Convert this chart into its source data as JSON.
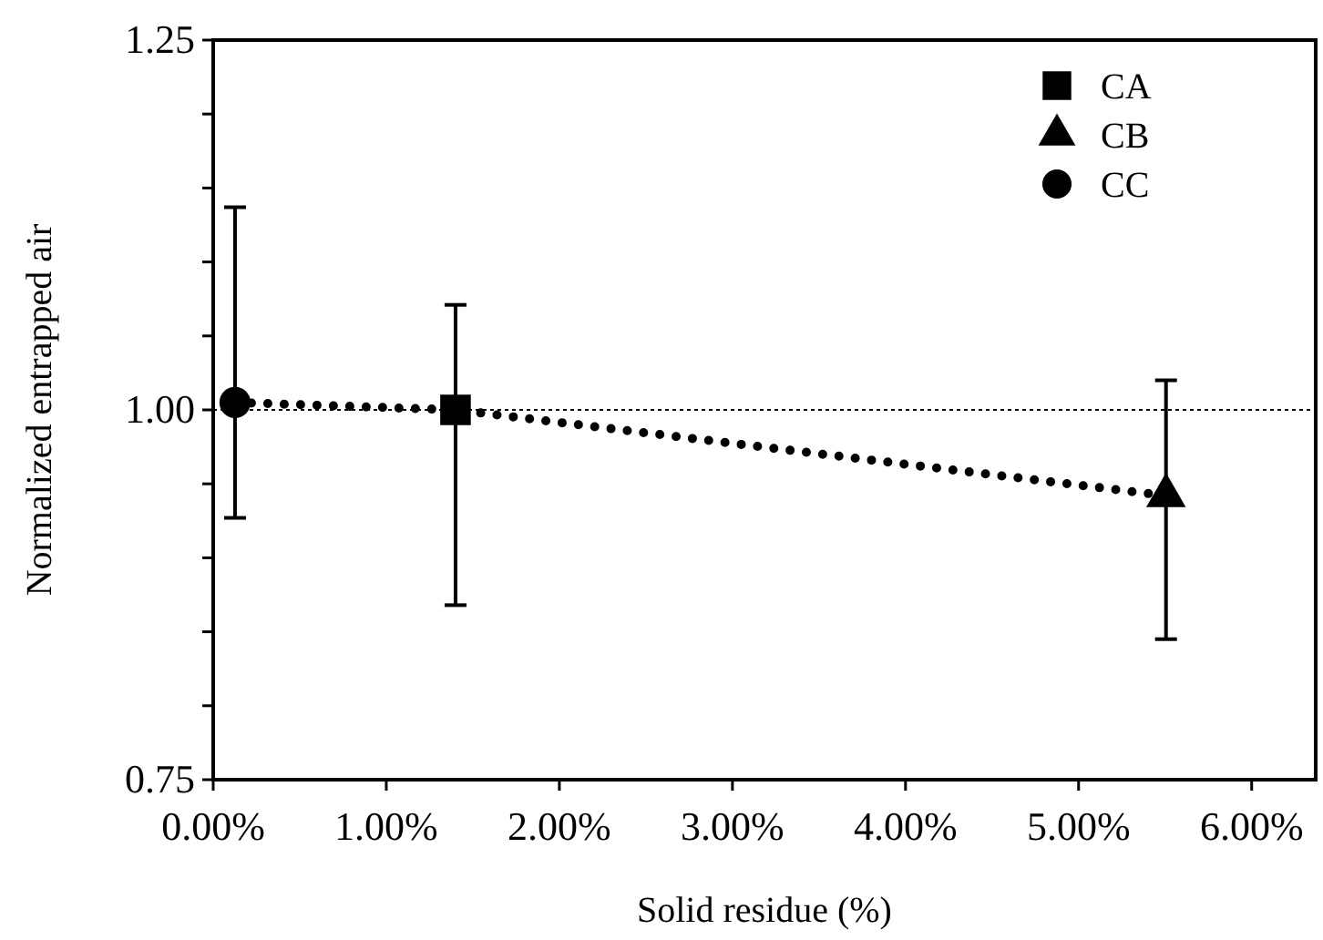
{
  "chart_data": {
    "type": "scatter",
    "xlabel": "Solid residue (%)",
    "ylabel": "Normalized entrapped air",
    "xlim": [
      0,
      6.37
    ],
    "xticks": [
      {
        "value": 0,
        "label": "0.00%"
      },
      {
        "value": 1,
        "label": "1.00%"
      },
      {
        "value": 2,
        "label": "2.00%"
      },
      {
        "value": 3,
        "label": "3.00%"
      },
      {
        "value": 4,
        "label": "4.00%"
      },
      {
        "value": 5,
        "label": "5.00%"
      },
      {
        "value": 6,
        "label": "6.00%"
      }
    ],
    "ylim": [
      0.75,
      1.25
    ],
    "yticks": [
      {
        "value": 0.75,
        "label": "0.75"
      },
      {
        "value": 0.8,
        "label": null
      },
      {
        "value": 0.85,
        "label": null
      },
      {
        "value": 0.9,
        "label": null
      },
      {
        "value": 0.95,
        "label": null
      },
      {
        "value": 1,
        "label": "1.00"
      },
      {
        "value": 1.05,
        "label": null
      },
      {
        "value": 1.1,
        "label": null
      },
      {
        "value": 1.15,
        "label": null
      },
      {
        "value": 1.2,
        "label": null
      },
      {
        "value": 1.25,
        "label": "1.25"
      }
    ],
    "grid": false,
    "legend": "top right",
    "series": [
      {
        "type": "line",
        "color": "#000000",
        "x": [
          0.126,
          1.4,
          5.505
        ],
        "values": [
          1.005,
          1.0,
          0.942
        ],
        "line_style": "dotted",
        "marker": "none"
      },
      {
        "name": "CA",
        "color": "#000000",
        "x": [
          1.4
        ],
        "values": [
          1.0
        ],
        "errors": [
          [
            0.868,
            1.071
          ]
        ],
        "marker": "square"
      },
      {
        "name": "CB",
        "color": "#000000",
        "x": [
          5.505
        ],
        "values": [
          0.942
        ],
        "errors": [
          [
            0.845,
            1.02
          ]
        ],
        "marker": "triangle"
      },
      {
        "name": "CC",
        "color": "#000000",
        "x": [
          0.126
        ],
        "values": [
          1.005
        ],
        "errors": [
          [
            0.927,
            1.137
          ]
        ],
        "marker": "circle"
      }
    ],
    "ref_lines": [
      {
        "axis": "y",
        "value": 1,
        "color": "#000000",
        "line_style": "dotted"
      }
    ]
  }
}
